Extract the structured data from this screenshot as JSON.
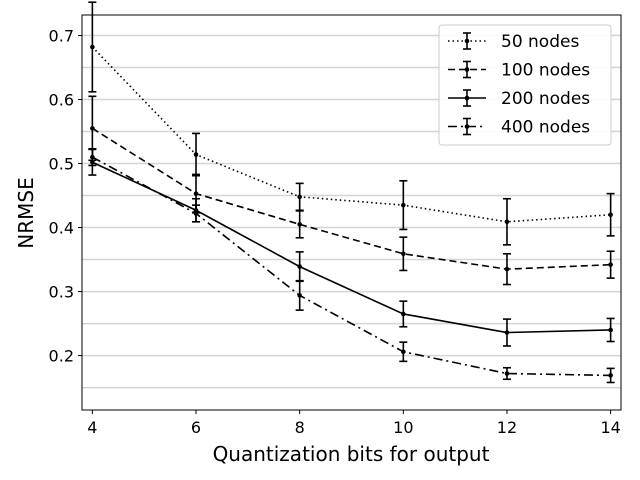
{
  "chart_data": {
    "type": "line",
    "title": "",
    "xlabel": "Quantization bits for output",
    "ylabel": "NRMSE",
    "xlim": [
      3.8,
      14.2
    ],
    "ylim": [
      0.115,
      0.732
    ],
    "xticks": [
      4,
      6,
      8,
      10,
      12,
      14
    ],
    "yticks": [
      0.2,
      0.3,
      0.4,
      0.5,
      0.6,
      0.7
    ],
    "ygrid": [
      0.15,
      0.2,
      0.25,
      0.3,
      0.35,
      0.4,
      0.45,
      0.5,
      0.55,
      0.6,
      0.65,
      0.7
    ],
    "grid": "horizontal",
    "legend_position": "top-right",
    "x": [
      4,
      6,
      8,
      10,
      12,
      14
    ],
    "series": [
      {
        "name": "50 nodes",
        "linestyle": "dotted",
        "values": [
          0.682,
          0.514,
          0.448,
          0.435,
          0.409,
          0.42
        ],
        "err": [
          0.07,
          0.033,
          0.021,
          0.038,
          0.036,
          0.033
        ]
      },
      {
        "name": "100 nodes",
        "linestyle": "dashed",
        "values": [
          0.555,
          0.453,
          0.405,
          0.359,
          0.335,
          0.342
        ],
        "err": [
          0.05,
          0.03,
          0.021,
          0.026,
          0.024,
          0.021
        ]
      },
      {
        "name": "200 nodes",
        "linestyle": "solid",
        "values": [
          0.502,
          0.427,
          0.339,
          0.265,
          0.236,
          0.24
        ],
        "err": [
          0.02,
          0.018,
          0.023,
          0.02,
          0.021,
          0.018
        ]
      },
      {
        "name": "400 nodes",
        "linestyle": "dashdot",
        "values": [
          0.51,
          0.422,
          0.294,
          0.206,
          0.172,
          0.169
        ],
        "err": [
          0.013,
          0.013,
          0.023,
          0.015,
          0.009,
          0.011
        ]
      }
    ]
  }
}
